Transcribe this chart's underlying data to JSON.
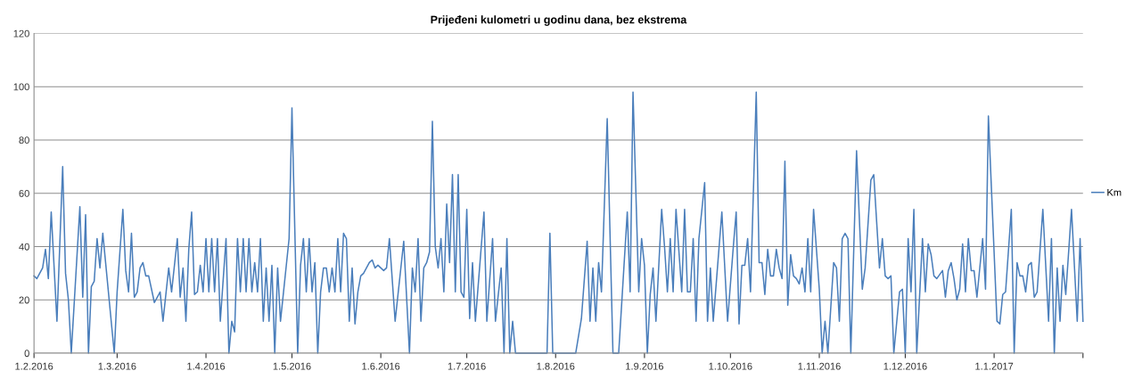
{
  "chart_data": {
    "type": "line",
    "title": "Prijeđeni kulometri u godinu dana, bez ekstrema",
    "x": [
      "2016-02-01",
      "2016-02-02",
      "2016-02-04",
      "2016-02-05",
      "2016-02-06",
      "2016-02-07",
      "2016-02-09",
      "2016-02-11",
      "2016-02-12",
      "2016-02-13",
      "2016-02-14",
      "2016-02-17",
      "2016-02-18",
      "2016-02-19",
      "2016-02-20",
      "2016-02-21",
      "2016-02-22",
      "2016-02-23",
      "2016-02-24",
      "2016-02-25",
      "2016-02-29",
      "2016-03-01",
      "2016-03-03",
      "2016-03-04",
      "2016-03-05",
      "2016-03-06",
      "2016-03-07",
      "2016-03-08",
      "2016-03-09",
      "2016-03-10",
      "2016-03-11",
      "2016-03-12",
      "2016-03-14",
      "2016-03-16",
      "2016-03-17",
      "2016-03-19",
      "2016-03-20",
      "2016-03-22",
      "2016-03-23",
      "2016-03-24",
      "2016-03-25",
      "2016-03-26",
      "2016-03-27",
      "2016-03-28",
      "2016-03-29",
      "2016-03-30",
      "2016-03-31",
      "2016-04-01",
      "2016-04-02",
      "2016-04-03",
      "2016-04-04",
      "2016-04-05",
      "2016-04-06",
      "2016-04-08",
      "2016-04-09",
      "2016-04-10",
      "2016-04-11",
      "2016-04-12",
      "2016-04-13",
      "2016-04-14",
      "2016-04-15",
      "2016-04-16",
      "2016-04-17",
      "2016-04-18",
      "2016-04-19",
      "2016-04-20",
      "2016-04-21",
      "2016-04-22",
      "2016-04-23",
      "2016-04-24",
      "2016-04-25",
      "2016-04-26",
      "2016-04-27",
      "2016-04-30",
      "2016-05-01",
      "2016-05-03",
      "2016-05-04",
      "2016-05-05",
      "2016-05-06",
      "2016-05-07",
      "2016-05-08",
      "2016-05-09",
      "2016-05-10",
      "2016-05-11",
      "2016-05-12",
      "2016-05-13",
      "2016-05-14",
      "2016-05-15",
      "2016-05-16",
      "2016-05-17",
      "2016-05-18",
      "2016-05-19",
      "2016-05-20",
      "2016-05-21",
      "2016-05-22",
      "2016-05-23",
      "2016-05-24",
      "2016-05-25",
      "2016-05-26",
      "2016-05-28",
      "2016-05-29",
      "2016-05-30",
      "2016-05-31",
      "2016-06-01",
      "2016-06-02",
      "2016-06-03",
      "2016-06-04",
      "2016-06-06",
      "2016-06-09",
      "2016-06-11",
      "2016-06-12",
      "2016-06-13",
      "2016-06-14",
      "2016-06-15",
      "2016-06-16",
      "2016-06-17",
      "2016-06-18",
      "2016-06-19",
      "2016-06-20",
      "2016-06-21",
      "2016-06-22",
      "2016-06-23",
      "2016-06-24",
      "2016-06-25",
      "2016-06-26",
      "2016-06-27",
      "2016-06-28",
      "2016-06-29",
      "2016-06-30",
      "2016-07-01",
      "2016-07-02",
      "2016-07-03",
      "2016-07-04",
      "2016-07-07",
      "2016-07-08",
      "2016-07-10",
      "2016-07-11",
      "2016-07-13",
      "2016-07-14",
      "2016-07-15",
      "2016-07-16",
      "2016-07-17",
      "2016-07-18",
      "2016-07-29",
      "2016-07-30",
      "2016-07-31",
      "2016-08-08",
      "2016-08-10",
      "2016-08-12",
      "2016-08-13",
      "2016-08-14",
      "2016-08-15",
      "2016-08-16",
      "2016-08-17",
      "2016-08-19",
      "2016-08-21",
      "2016-08-23",
      "2016-08-26",
      "2016-08-27",
      "2016-08-28",
      "2016-08-30",
      "2016-08-31",
      "2016-09-01",
      "2016-09-02",
      "2016-09-03",
      "2016-09-04",
      "2016-09-05",
      "2016-09-07",
      "2016-09-08",
      "2016-09-09",
      "2016-09-10",
      "2016-09-11",
      "2016-09-12",
      "2016-09-14",
      "2016-09-15",
      "2016-09-16",
      "2016-09-17",
      "2016-09-18",
      "2016-09-19",
      "2016-09-20",
      "2016-09-22",
      "2016-09-23",
      "2016-09-24",
      "2016-09-25",
      "2016-09-28",
      "2016-09-30",
      "2016-10-02",
      "2016-10-03",
      "2016-10-04",
      "2016-10-05",
      "2016-10-06",
      "2016-10-07",
      "2016-10-08",
      "2016-10-10",
      "2016-10-11",
      "2016-10-12",
      "2016-10-13",
      "2016-10-14",
      "2016-10-15",
      "2016-10-16",
      "2016-10-17",
      "2016-10-18",
      "2016-10-19",
      "2016-10-20",
      "2016-10-21",
      "2016-10-22",
      "2016-10-23",
      "2016-10-24",
      "2016-10-25",
      "2016-10-26",
      "2016-10-27",
      "2016-10-28",
      "2016-10-29",
      "2016-10-30",
      "2016-11-01",
      "2016-11-02",
      "2016-11-03",
      "2016-11-04",
      "2016-11-06",
      "2016-11-07",
      "2016-11-08",
      "2016-11-09",
      "2016-11-10",
      "2016-11-11",
      "2016-11-12",
      "2016-11-14",
      "2016-11-16",
      "2016-11-17",
      "2016-11-19",
      "2016-11-20",
      "2016-11-22",
      "2016-11-23",
      "2016-11-24",
      "2016-11-25",
      "2016-11-26",
      "2016-11-27",
      "2016-11-29",
      "2016-11-30",
      "2016-12-01",
      "2016-12-02",
      "2016-12-03",
      "2016-12-04",
      "2016-12-05",
      "2016-12-07",
      "2016-12-08",
      "2016-12-09",
      "2016-12-10",
      "2016-12-11",
      "2016-12-12",
      "2016-12-14",
      "2016-12-15",
      "2016-12-16",
      "2016-12-17",
      "2016-12-18",
      "2016-12-19",
      "2016-12-20",
      "2016-12-21",
      "2016-12-22",
      "2016-12-23",
      "2016-12-24",
      "2016-12-25",
      "2016-12-26",
      "2016-12-28",
      "2016-12-29",
      "2016-12-30",
      "2017-01-02",
      "2017-01-03",
      "2017-01-04",
      "2017-01-05",
      "2017-01-07",
      "2017-01-08",
      "2017-01-09",
      "2017-01-10",
      "2017-01-11",
      "2017-01-12",
      "2017-01-13",
      "2017-01-14",
      "2017-01-15",
      "2017-01-16",
      "2017-01-18",
      "2017-01-20",
      "2017-01-21",
      "2017-01-22",
      "2017-01-23",
      "2017-01-24",
      "2017-01-25",
      "2017-01-26",
      "2017-01-28",
      "2017-01-30",
      "2017-01-31",
      "2017-02-01"
    ],
    "series": [
      {
        "name": "Km",
        "color": "#4a7ebb",
        "values": [
          29,
          28,
          32,
          39,
          28,
          53,
          12,
          70,
          30,
          20,
          0,
          55,
          21,
          52,
          0,
          25,
          27,
          43,
          32,
          45,
          0,
          23,
          54,
          31,
          23,
          45,
          21,
          23,
          32,
          34,
          29,
          29,
          19,
          23,
          12,
          32,
          23,
          43,
          21,
          32,
          12,
          39,
          53,
          22,
          23,
          33,
          23,
          43,
          23,
          43,
          23,
          43,
          12,
          43,
          0,
          12,
          8,
          43,
          23,
          43,
          23,
          43,
          23,
          34,
          23,
          43,
          12,
          32,
          12,
          33,
          0,
          32,
          12,
          43,
          92,
          0,
          33,
          43,
          23,
          43,
          23,
          34,
          0,
          23,
          32,
          32,
          23,
          32,
          23,
          43,
          23,
          45,
          43,
          12,
          32,
          11,
          23,
          29,
          30,
          34,
          35,
          32,
          33,
          32,
          31,
          32,
          43,
          12,
          42,
          0,
          32,
          23,
          43,
          12,
          32,
          34,
          38,
          87,
          40,
          32,
          43,
          23,
          56,
          34,
          67,
          23,
          67,
          23,
          21,
          54,
          13,
          34,
          12,
          53,
          12,
          43,
          12,
          32,
          0,
          43,
          0,
          12,
          0,
          0,
          45,
          0,
          0,
          13,
          42,
          12,
          32,
          12,
          34,
          23,
          88,
          0,
          0,
          53,
          23,
          98,
          23,
          43,
          33,
          0,
          22,
          32,
          12,
          54,
          40,
          23,
          43,
          23,
          54,
          23,
          54,
          23,
          23,
          43,
          12,
          43,
          64,
          12,
          32,
          12,
          53,
          12,
          40,
          53,
          11,
          33,
          33,
          43,
          23,
          98,
          34,
          34,
          22,
          39,
          29,
          29,
          39,
          32,
          28,
          72,
          18,
          37,
          29,
          28,
          26,
          32,
          23,
          43,
          23,
          54,
          24,
          0,
          12,
          0,
          34,
          32,
          12,
          43,
          45,
          43,
          0,
          76,
          24,
          32,
          65,
          67,
          32,
          43,
          29,
          28,
          29,
          0,
          23,
          24,
          0,
          43,
          23,
          54,
          0,
          43,
          23,
          41,
          37,
          29,
          28,
          31,
          21,
          31,
          34,
          28,
          20,
          24,
          41,
          23,
          43,
          31,
          31,
          21,
          43,
          24,
          89,
          12,
          11,
          22,
          23,
          54,
          0,
          34,
          29,
          29,
          23,
          33,
          34,
          21,
          23,
          54,
          12,
          43,
          0,
          32,
          12,
          33,
          22,
          54,
          12,
          43,
          12
        ]
      }
    ],
    "xlim": [
      "2016-02-01",
      "2017-02-01"
    ],
    "xticks": [
      {
        "value": "2016-02-01",
        "label": "1.2.2016"
      },
      {
        "value": "2016-03-01",
        "label": "1.3.2016"
      },
      {
        "value": "2016-04-01",
        "label": "1.4.2016"
      },
      {
        "value": "2016-05-01",
        "label": "1.5.2016"
      },
      {
        "value": "2016-06-01",
        "label": "1.6.2016"
      },
      {
        "value": "2016-07-01",
        "label": "1.7.2016"
      },
      {
        "value": "2016-08-01",
        "label": "1.8.2016"
      },
      {
        "value": "2016-09-01",
        "label": "1.9.2016"
      },
      {
        "value": "2016-10-01",
        "label": "1.10.2016"
      },
      {
        "value": "2016-11-01",
        "label": "1.11.2016"
      },
      {
        "value": "2016-12-01",
        "label": "1.12.2016"
      },
      {
        "value": "2017-01-01",
        "label": "1.1.2017"
      },
      {
        "value": "2017-02-01",
        "label": null
      }
    ],
    "ylim": [
      0,
      120
    ],
    "yticks": [
      0,
      20,
      40,
      60,
      80,
      100,
      120
    ],
    "grid": "y",
    "legend": "right",
    "marker": "none",
    "line_style": "solid"
  }
}
